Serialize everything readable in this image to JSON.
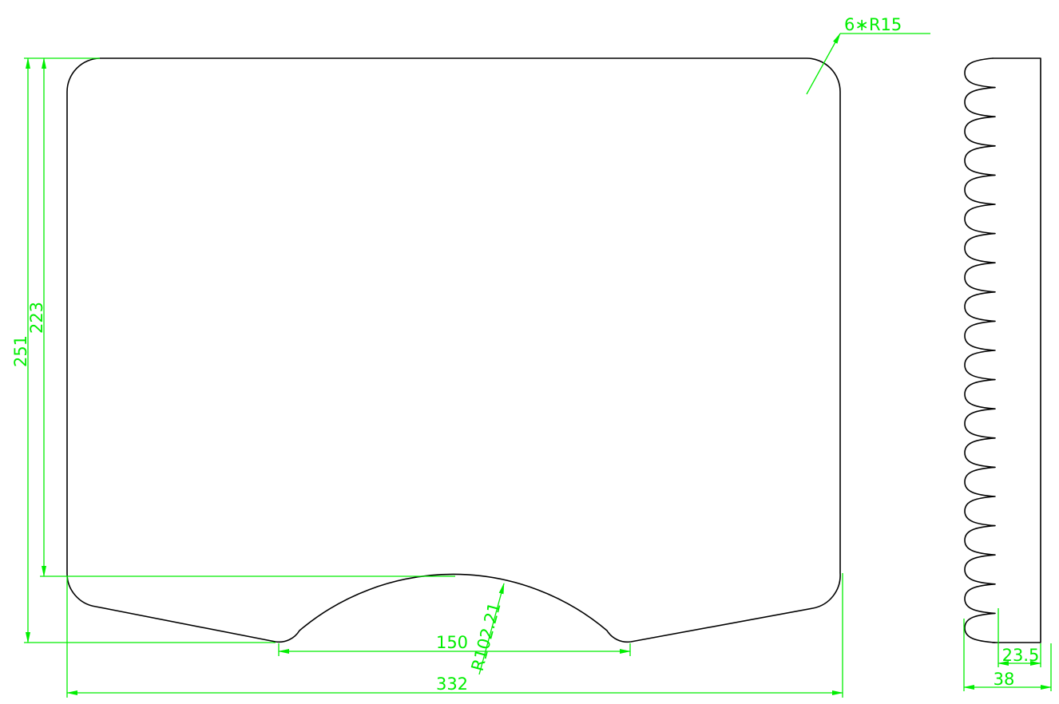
{
  "colors": {
    "outline": "#000000",
    "dimension": "#00ee00",
    "background": "#ffffff"
  },
  "dimensions": {
    "corner_radius_note": "6∗R15",
    "overall_height": "251",
    "inner_height": "223",
    "overall_width": "332",
    "notch_width": "150",
    "notch_radius": "R102.21",
    "side_view_width": "38",
    "side_view_inner_width": "23.5"
  },
  "side_view": {
    "wave_count": 20
  }
}
